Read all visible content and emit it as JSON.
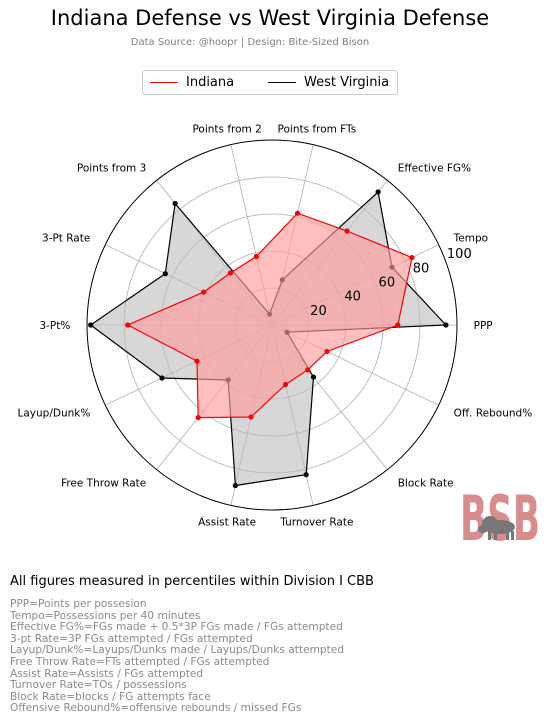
{
  "header": {
    "title": "Indiana Defense vs West Virginia Defense",
    "subtitle": "Data Source: @hoopr | Design: Bite-Sized Bison"
  },
  "colors": {
    "indiana": "#ff0000",
    "indiana_fill": "#ff9c9c",
    "west_virginia": "#000000",
    "west_virginia_fill": "#bdbdbd",
    "grid": "#b0b0b0",
    "logo": "#d98c8c"
  },
  "logo": {
    "text": "BSB",
    "icon": "bison-icon"
  },
  "chart_data": {
    "type": "radar",
    "rlim": [
      0,
      100
    ],
    "radial_ticks": [
      20,
      40,
      60,
      80,
      100
    ],
    "grid": true,
    "legend_position": "top-center",
    "categories": [
      "PPP",
      "Tempo",
      "Effective FG%",
      "Points from FTs",
      "Points from 2",
      "Points from 3",
      "3-Pt Rate",
      "3-Pt%",
      "Layup/Dunk%",
      "Free Throw Rate",
      "Assist Rate",
      "Turnover Rate",
      "Block Rate",
      "Off. Rebound%"
    ],
    "series": [
      {
        "name": "Indiana",
        "values": [
          68,
          84,
          65,
          62,
          38,
          36,
          41,
          78,
          45,
          64,
          51,
          33,
          31,
          33
        ]
      },
      {
        "name": "West Virginia",
        "values": [
          94,
          72,
          92,
          25,
          6,
          84,
          64,
          98,
          66,
          38,
          89,
          83,
          36,
          9
        ]
      }
    ]
  },
  "notes": {
    "heading": "All figures measured in percentiles within Division I CBB",
    "lines": [
      "PPP=Points per possesion",
      "Tempo=Possessions per 40 minutes",
      "Effective FG%=FGs made + 0.5*3P FGs made / FGs attempted",
      "3-pt Rate=3P FGs attempted / FGs attempted",
      "Layup/Dunk%=Layups/Dunks made / Layups/Dunks attempted",
      "Free Throw Rate=FTs attempted / FGs attempted",
      "Assist Rate=Assists / FGs attempted",
      "Turnover Rate=TOs / possessions",
      "Block Rate=blocks / FG attempts face",
      "Offensive Rebound%=offensive rebounds / missed FGs"
    ]
  }
}
